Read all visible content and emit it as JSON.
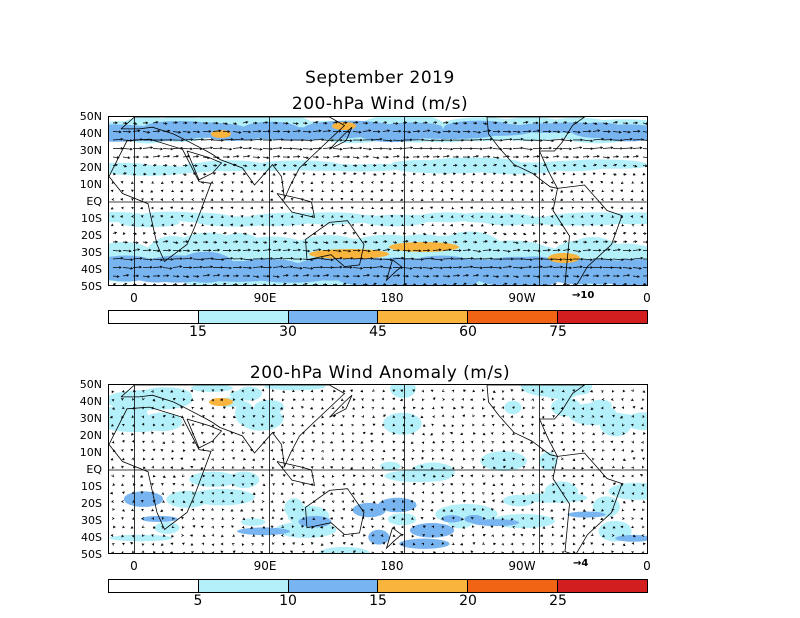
{
  "title": "September 2019",
  "top_panel": {
    "title": "200-hPa Wind (m/s)",
    "ref_vector": "10",
    "colorbar_labels": [
      "15",
      "30",
      "45",
      "60",
      "75"
    ]
  },
  "bottom_panel": {
    "title": "200-hPa Wind Anomaly (m/s)",
    "ref_vector": "4",
    "colorbar_labels": [
      "5",
      "10",
      "15",
      "20",
      "25"
    ]
  },
  "lat_labels": [
    "50N",
    "40N",
    "30N",
    "20N",
    "10N",
    "EQ",
    "10S",
    "20S",
    "30S",
    "40S",
    "50S"
  ],
  "lon_labels": [
    "0",
    "90E",
    "180",
    "90W",
    "0"
  ],
  "colors": {
    "bins": [
      "#ffffff",
      "#b4f0fa",
      "#78b4f0",
      "#f8b43c",
      "#f06414",
      "#d21e1e"
    ],
    "light_blue": "#b4f0fa",
    "mid_blue": "#78b4f0",
    "orange": "#f8b43c"
  }
}
